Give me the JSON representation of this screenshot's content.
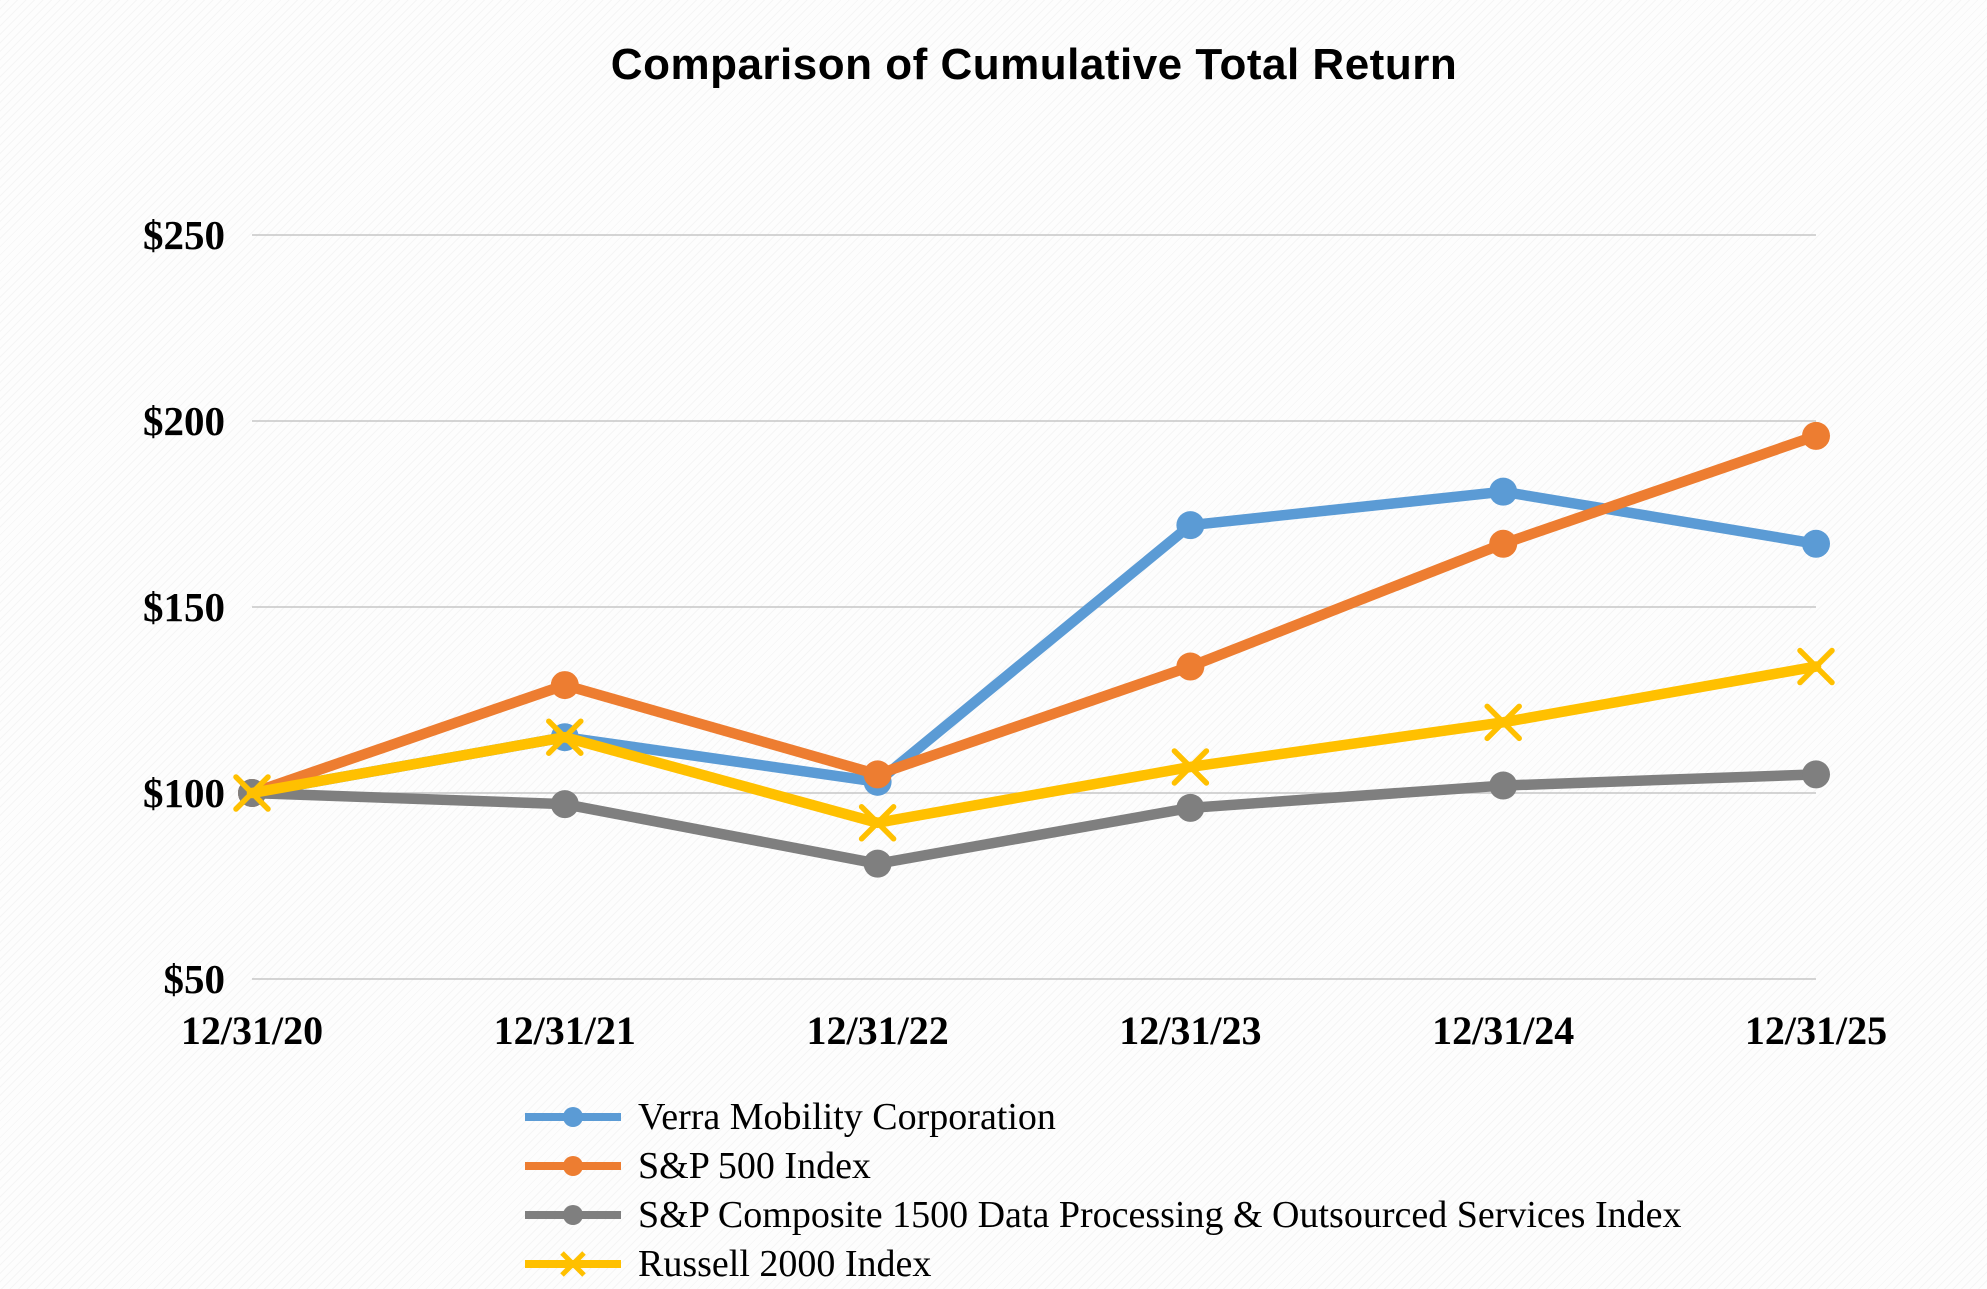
{
  "chart_data": {
    "type": "line",
    "title": "Comparison of Cumulative Total Return",
    "categories": [
      "12/31/20",
      "12/31/21",
      "12/31/22",
      "12/31/23",
      "12/31/24",
      "12/31/25"
    ],
    "series": [
      {
        "name": "Verra Mobility Corporation",
        "color": "#5B9BD5",
        "marker": "circle",
        "values": [
          100,
          115,
          103,
          172,
          181,
          167
        ]
      },
      {
        "name": "S&P 500 Index",
        "color": "#ED7D31",
        "marker": "circle",
        "values": [
          100,
          129,
          105,
          134,
          167,
          196
        ]
      },
      {
        "name": "S&P Composite 1500 Data Processing & Outsourced Services Index",
        "color": "#7F7F7F",
        "marker": "circle",
        "values": [
          100,
          97,
          81,
          96,
          102,
          105
        ]
      },
      {
        "name": "Russell 2000 Index",
        "color": "#FFC000",
        "marker": "x",
        "values": [
          100,
          115,
          92,
          107,
          119,
          134
        ]
      }
    ],
    "yaxis": {
      "range": [
        50,
        250
      ],
      "ticks": [
        {
          "value": 250,
          "label": "$250"
        },
        {
          "value": 200,
          "label": "$200"
        },
        {
          "value": 150,
          "label": "$150"
        },
        {
          "value": 100,
          "label": "$100"
        },
        {
          "value": 50,
          "label": "$50"
        }
      ]
    },
    "grid": true,
    "gridline_color": "#C6C6C6",
    "legend_position": "bottom-left"
  }
}
